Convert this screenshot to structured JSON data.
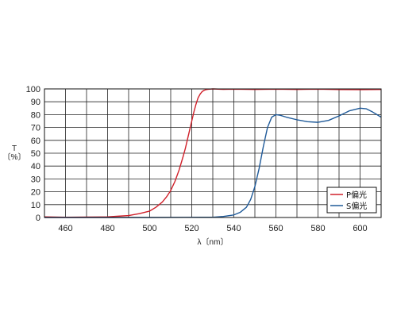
{
  "chart_data": {
    "type": "line",
    "title": "",
    "xlabel": "λ〔nm〕",
    "ylabel_lines": [
      "T",
      "〔%〕"
    ],
    "xlim": [
      450,
      610
    ],
    "ylim": [
      0,
      100
    ],
    "x_ticks": [
      460,
      480,
      500,
      520,
      540,
      560,
      580,
      600
    ],
    "y_ticks": [
      0,
      10,
      20,
      30,
      40,
      50,
      60,
      70,
      80,
      90,
      100
    ],
    "x_grid_step": 10,
    "grid": true,
    "legend_position": "bottom-right",
    "series": [
      {
        "name": "P偏光",
        "color": "#d0202a",
        "x": [
          450,
          455,
          460,
          470,
          480,
          485,
          490,
          495,
          500,
          503,
          506,
          508,
          510,
          512,
          514,
          516,
          517,
          518,
          519,
          520,
          521,
          522,
          523,
          524,
          525,
          526,
          527,
          528,
          530,
          535,
          540,
          550,
          560,
          570,
          580,
          590,
          600,
          610
        ],
        "y": [
          0.5,
          0.3,
          0.2,
          0.3,
          0.5,
          1.0,
          1.5,
          3,
          5,
          8,
          12,
          16,
          21,
          28,
          37,
          48,
          54,
          61,
          68,
          75,
          82,
          88,
          93,
          96,
          98,
          99,
          99.5,
          99.7,
          100,
          99.7,
          99.8,
          99.6,
          99.8,
          99.6,
          99.8,
          99.5,
          99.4,
          99.6
        ]
      },
      {
        "name": "S偏光",
        "color": "#1f5a99",
        "x": [
          450,
          500,
          530,
          535,
          540,
          543,
          546,
          548,
          550,
          552,
          554,
          556,
          558,
          560,
          562,
          565,
          570,
          575,
          580,
          585,
          590,
          595,
          600,
          603,
          606,
          608,
          610
        ],
        "y": [
          0,
          0,
          0.2,
          0.8,
          2,
          4,
          8,
          14,
          24,
          38,
          55,
          70,
          78,
          80,
          79.5,
          78,
          76,
          74.5,
          74,
          75.5,
          79,
          83,
          85,
          84.5,
          82,
          80,
          78
        ]
      }
    ]
  }
}
